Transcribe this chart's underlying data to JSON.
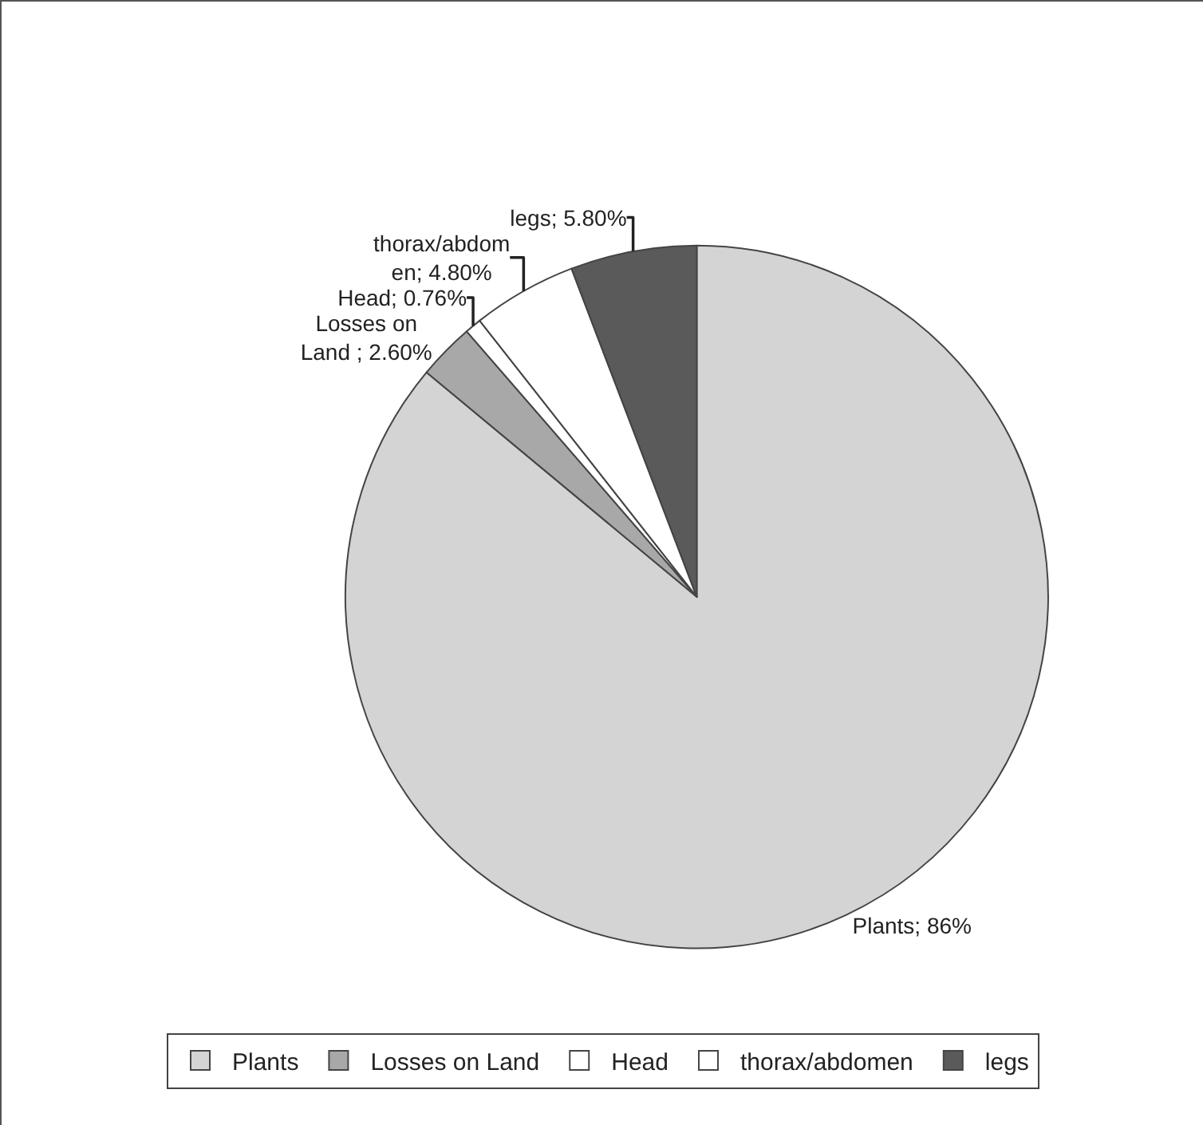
{
  "chart_data": {
    "type": "pie",
    "categories": [
      "Plants",
      "Losses on Land",
      "Head",
      "thorax/abdomen",
      "legs"
    ],
    "values": [
      86,
      2.6,
      0.76,
      4.8,
      5.8
    ],
    "colors": [
      "#d4d4d4",
      "#a8a8a8",
      "#ffffff",
      "#ffffff",
      "#5a5a5a"
    ],
    "value_labels": [
      "Plants; 86%",
      "Losses on Land ; 2.60%",
      "Head; 0.76%",
      "thorax/abdom en; 4.80%",
      "legs; 5.80%"
    ],
    "legend": "bottom"
  }
}
